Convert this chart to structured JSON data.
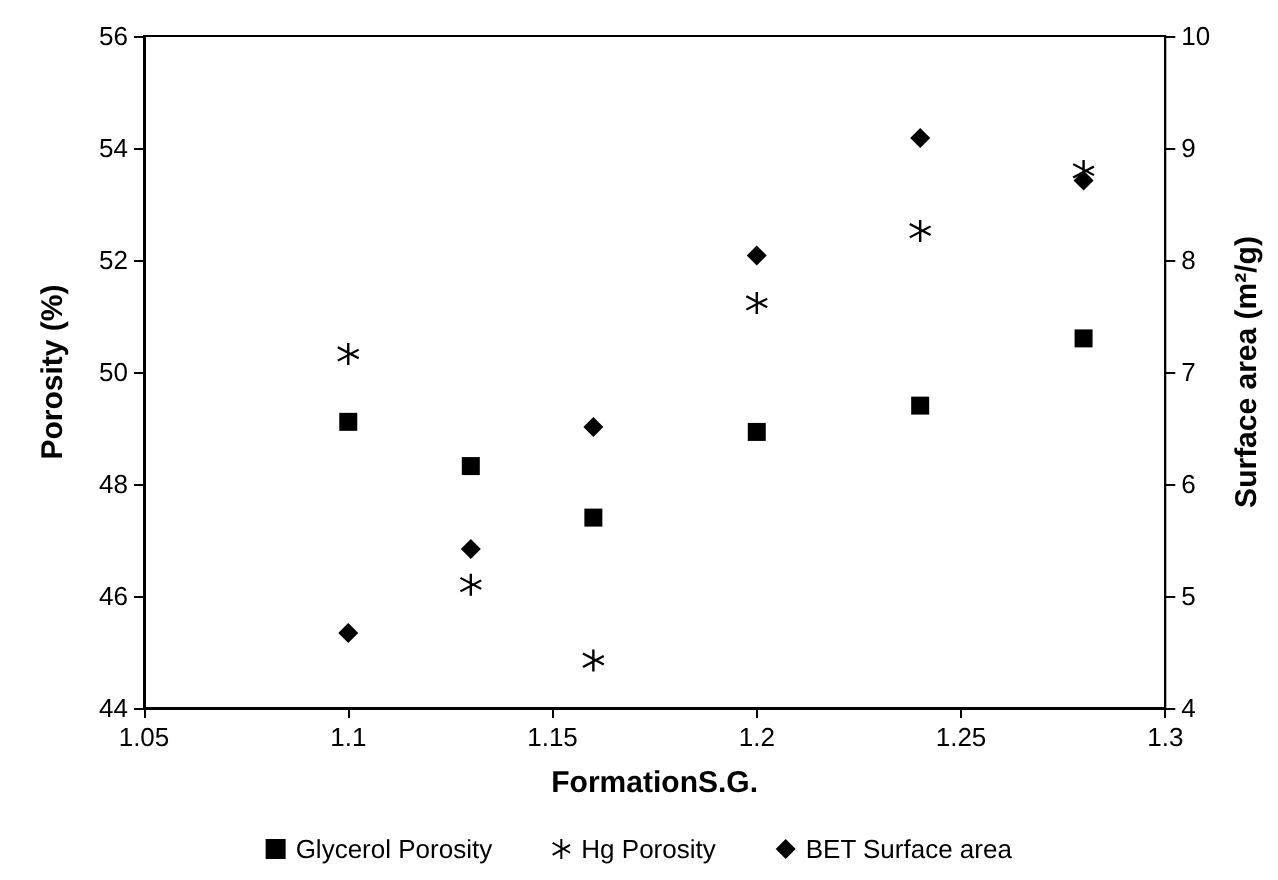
{
  "chart_data": {
    "type": "scatter",
    "xlabel": "FormationS.G.",
    "ylabel": "Porosity (%)",
    "y2label": "Surface area (m²/g)",
    "xlim": [
      1.05,
      1.3
    ],
    "xticks": [
      1.05,
      1.1,
      1.15,
      1.2,
      1.25,
      1.3
    ],
    "ylim": [
      44,
      56
    ],
    "yticks": [
      44,
      46,
      48,
      50,
      52,
      54,
      56
    ],
    "y2lim": [
      4,
      10
    ],
    "y2ticks": [
      4,
      5,
      6,
      7,
      8,
      9,
      10
    ],
    "grid": false,
    "legend": "bottom",
    "x": [
      1.1,
      1.13,
      1.16,
      1.2,
      1.24,
      1.28
    ],
    "series": [
      {
        "name": "Glycerol Porosity",
        "color": "#000000",
        "marker": "square",
        "values": [
          49.11,
          48.32,
          47.4,
          48.93,
          49.4,
          50.6
        ]
      },
      {
        "name": "Hg Porosity",
        "color": "#000000",
        "marker": "cross",
        "values": [
          50.32,
          46.2,
          44.85,
          51.23,
          52.52,
          53.59
        ]
      },
      {
        "name": "BET Surface area",
        "color": "#000000",
        "marker": "diamond",
        "axis": "y2",
        "values": [
          4.67,
          5.42,
          6.51,
          8.04,
          9.09,
          8.71
        ]
      }
    ]
  }
}
